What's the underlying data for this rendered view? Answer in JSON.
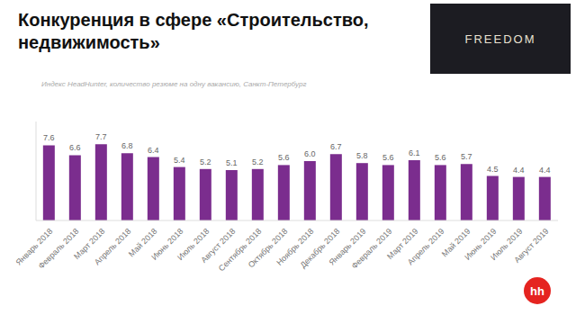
{
  "chart_data": {
    "type": "bar",
    "title": "Конкуренция в сфере «Строительство, недвижимость»",
    "subtitle": "Индекс HeadHunter, количество резюме на одну вакансию, Санкт-Петербург",
    "annotations": [
      "FREEDOM",
      "hh"
    ],
    "categories": [
      "Январь 2018",
      "Февраль 2018",
      "Март 2018",
      "Апрель 2018",
      "Май 2018",
      "Июнь 2018",
      "Июль 2018",
      "Август 2018",
      "Сентябрь 2018",
      "Октябрь 2018",
      "Ноябрь 2018",
      "Декабрь 2018",
      "Январь 2019",
      "Февраль 2019",
      "Март 2019",
      "Апрель 2019",
      "Май 2019",
      "Июнь 2019",
      "Июль 2019",
      "Август 2019"
    ],
    "values": [
      7.6,
      6.6,
      7.7,
      6.8,
      6.4,
      5.4,
      5.2,
      5.1,
      5.2,
      5.6,
      6.0,
      6.7,
      5.8,
      5.6,
      6.1,
      5.6,
      5.7,
      4.5,
      4.4,
      4.4
    ],
    "value_labels": [
      "7.6",
      "6.6",
      "7.7",
      "6.8",
      "6.4",
      "5.4",
      "5.2",
      "5.1",
      "5.2",
      "5.6",
      "6.0",
      "6.7",
      "5.8",
      "5.6",
      "6.1",
      "5.6",
      "5.7",
      "4.5",
      "4.4",
      "4.4"
    ],
    "color": "#7b2d8e",
    "ylim": [
      0,
      10
    ],
    "grid": false,
    "data_labels": true,
    "tick_labels": "x"
  }
}
